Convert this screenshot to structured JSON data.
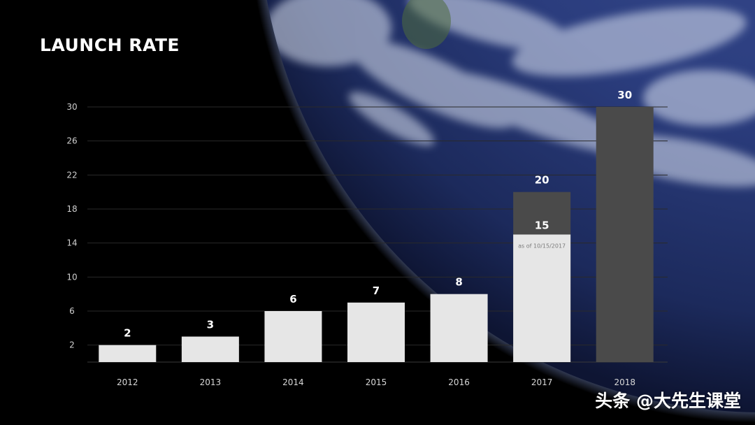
{
  "colors": {
    "background": "#000000",
    "bar_actual": "#e6e6e6",
    "bar_projected": "#4a4a4a",
    "gridline": "#2a2a2a",
    "baseline": "#3a3a3a"
  },
  "watermark": "头条 @大先生课堂",
  "chart_data": {
    "type": "bar",
    "title": "LAUNCH RATE",
    "xlabel": "",
    "ylabel": "",
    "ylim": [
      0,
      30
    ],
    "yticks": [
      2,
      6,
      10,
      14,
      18,
      22,
      26,
      30
    ],
    "grid": true,
    "categories": [
      "2012",
      "2013",
      "2014",
      "2015",
      "2016",
      "2017",
      "2018"
    ],
    "series": [
      {
        "values": [
          2,
          3,
          6,
          7,
          8,
          15,
          null
        ]
      },
      {
        "values": [
          null,
          null,
          null,
          null,
          null,
          20,
          30
        ]
      }
    ],
    "data_labels": [
      "2",
      "3",
      "6",
      "7",
      "8",
      "15",
      "30"
    ],
    "projected_labels": [
      null,
      null,
      null,
      null,
      null,
      "20",
      null
    ],
    "annotations": [
      {
        "category": "2017",
        "text": "as of 10/15/2017"
      }
    ]
  }
}
